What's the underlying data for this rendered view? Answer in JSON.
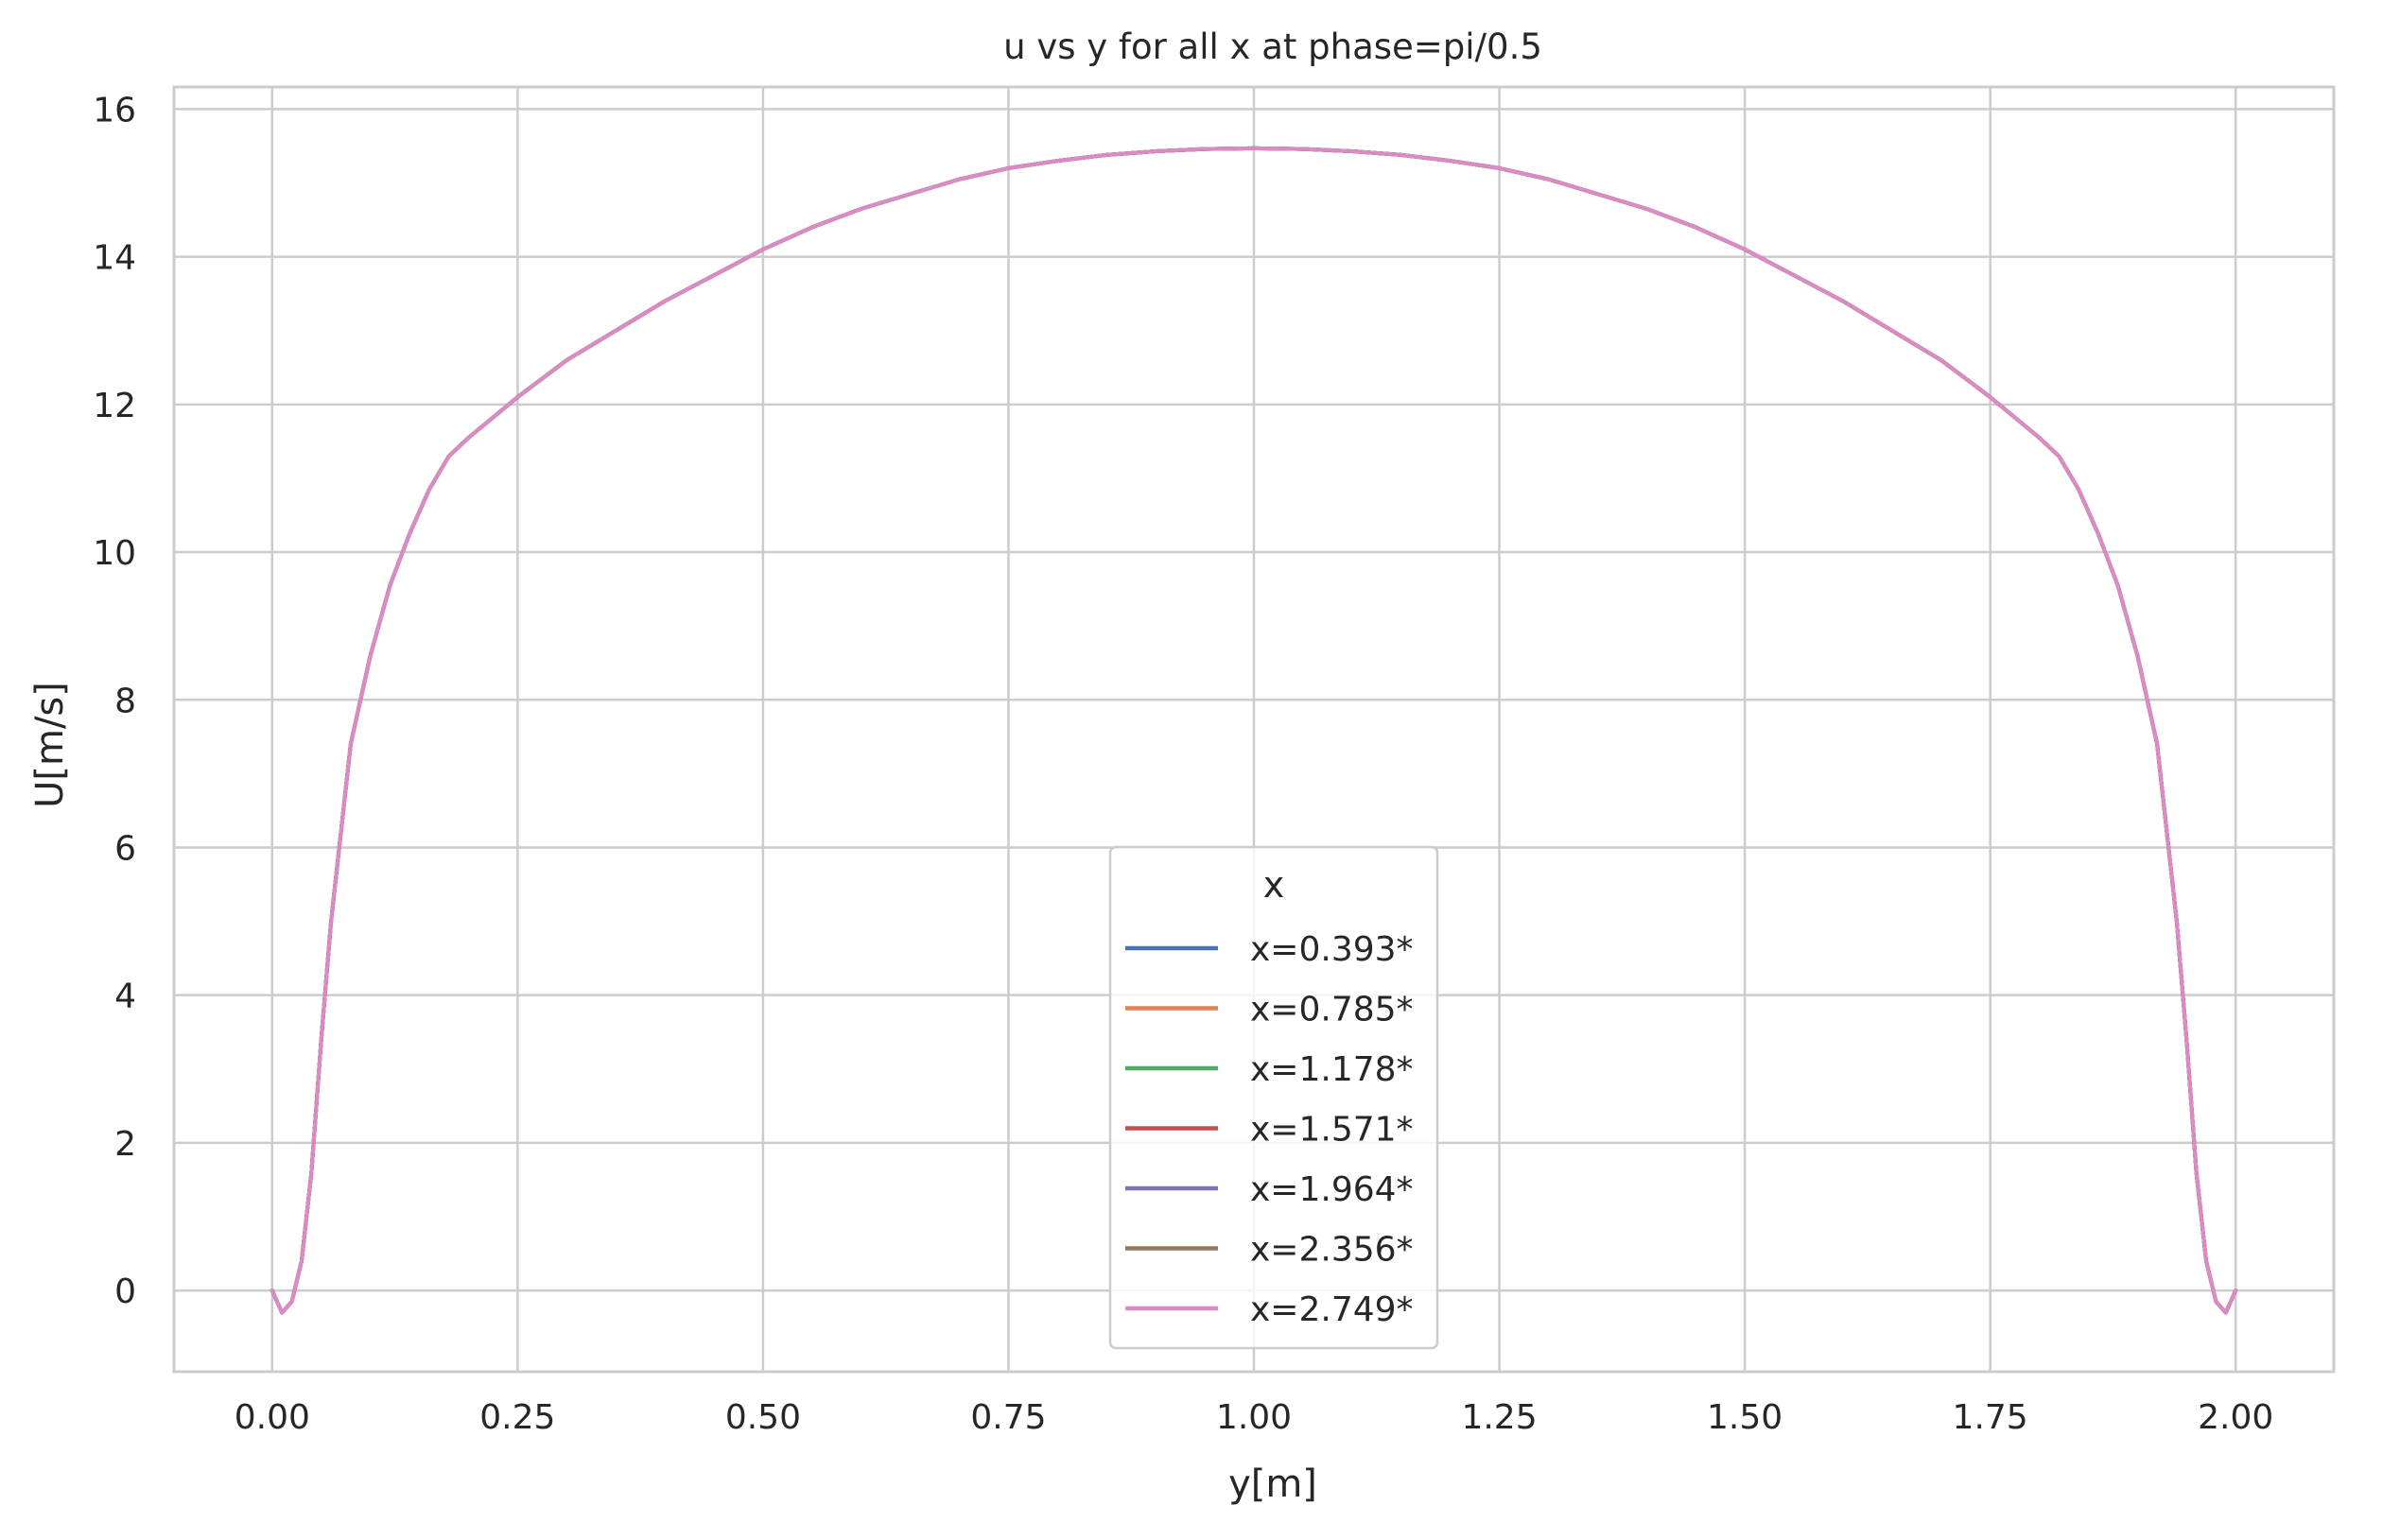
{
  "chart_data": {
    "type": "line",
    "title": "u vs y for all x at phase=pi/0.5",
    "xlabel": "y[m]",
    "ylabel": "U[m/s]",
    "xlim": [
      -0.1,
      2.1
    ],
    "ylim": [
      -1.1,
      16.3
    ],
    "xticks": [
      0.0,
      0.25,
      0.5,
      0.75,
      1.0,
      1.25,
      1.5,
      1.75,
      2.0
    ],
    "xtick_labels": [
      "0.00",
      "0.25",
      "0.50",
      "0.75",
      "1.00",
      "1.25",
      "1.50",
      "1.75",
      "2.00"
    ],
    "yticks": [
      0,
      2,
      4,
      6,
      8,
      10,
      12,
      14,
      16
    ],
    "ytick_labels": [
      "0",
      "2",
      "4",
      "6",
      "8",
      "10",
      "12",
      "14",
      "16"
    ],
    "grid": true,
    "legend": {
      "title": "x",
      "position": "lower center"
    },
    "x": [
      0.0,
      0.01,
      0.02,
      0.03,
      0.04,
      0.05,
      0.06,
      0.07,
      0.08,
      0.1,
      0.12,
      0.14,
      0.16,
      0.18,
      0.2,
      0.25,
      0.3,
      0.35,
      0.4,
      0.45,
      0.5,
      0.55,
      0.6,
      0.65,
      0.7,
      0.75,
      0.8,
      0.85,
      0.9,
      0.95,
      1.0,
      1.05,
      1.1,
      1.15,
      1.2,
      1.25,
      1.3,
      1.35,
      1.4,
      1.45,
      1.5,
      1.55,
      1.6,
      1.65,
      1.7,
      1.75,
      1.8,
      1.82,
      1.84,
      1.86,
      1.88,
      1.9,
      1.92,
      1.93,
      1.94,
      1.95,
      1.96,
      1.97,
      1.98,
      1.99,
      2.0
    ],
    "series": [
      {
        "name": "x=0.393*",
        "color": "#4c72b0",
        "values": [
          0.0,
          -0.3,
          -0.15,
          0.4,
          1.6,
          3.4,
          5.0,
          6.2,
          7.4,
          8.6,
          9.55,
          10.25,
          10.85,
          11.3,
          11.55,
          12.1,
          12.6,
          13.0,
          13.4,
          13.75,
          14.1,
          14.4,
          14.65,
          14.85,
          15.05,
          15.2,
          15.3,
          15.38,
          15.43,
          15.46,
          15.47,
          15.46,
          15.43,
          15.38,
          15.3,
          15.2,
          15.05,
          14.85,
          14.65,
          14.4,
          14.1,
          13.75,
          13.4,
          13.0,
          12.6,
          12.1,
          11.55,
          11.3,
          10.85,
          10.25,
          9.55,
          8.6,
          7.4,
          6.2,
          5.0,
          3.4,
          1.6,
          0.4,
          -0.15,
          -0.3,
          0.0
        ]
      },
      {
        "name": "x=0.785*",
        "color": "#dd8452",
        "values": [
          0.0,
          -0.3,
          -0.15,
          0.4,
          1.6,
          3.4,
          5.0,
          6.2,
          7.4,
          8.6,
          9.55,
          10.25,
          10.85,
          11.3,
          11.55,
          12.1,
          12.6,
          13.0,
          13.4,
          13.75,
          14.1,
          14.4,
          14.65,
          14.85,
          15.05,
          15.2,
          15.3,
          15.38,
          15.43,
          15.46,
          15.47,
          15.46,
          15.43,
          15.38,
          15.3,
          15.2,
          15.05,
          14.85,
          14.65,
          14.4,
          14.1,
          13.75,
          13.4,
          13.0,
          12.6,
          12.1,
          11.55,
          11.3,
          10.85,
          10.25,
          9.55,
          8.6,
          7.4,
          6.2,
          5.0,
          3.4,
          1.6,
          0.4,
          -0.15,
          -0.3,
          0.0
        ]
      },
      {
        "name": "x=1.178*",
        "color": "#55a868",
        "values": [
          0.0,
          -0.3,
          -0.15,
          0.4,
          1.6,
          3.4,
          5.0,
          6.2,
          7.4,
          8.6,
          9.55,
          10.25,
          10.85,
          11.3,
          11.55,
          12.1,
          12.6,
          13.0,
          13.4,
          13.75,
          14.1,
          14.4,
          14.65,
          14.85,
          15.05,
          15.2,
          15.3,
          15.38,
          15.43,
          15.46,
          15.47,
          15.46,
          15.43,
          15.38,
          15.3,
          15.2,
          15.05,
          14.85,
          14.65,
          14.4,
          14.1,
          13.75,
          13.4,
          13.0,
          12.6,
          12.1,
          11.55,
          11.3,
          10.85,
          10.25,
          9.55,
          8.6,
          7.4,
          6.2,
          5.0,
          3.4,
          1.6,
          0.4,
          -0.15,
          -0.3,
          0.0
        ]
      },
      {
        "name": "x=1.571*",
        "color": "#c44e52",
        "values": [
          0.0,
          -0.3,
          -0.15,
          0.4,
          1.6,
          3.4,
          5.0,
          6.2,
          7.4,
          8.6,
          9.55,
          10.25,
          10.85,
          11.3,
          11.55,
          12.1,
          12.6,
          13.0,
          13.4,
          13.75,
          14.1,
          14.4,
          14.65,
          14.85,
          15.05,
          15.2,
          15.3,
          15.38,
          15.43,
          15.46,
          15.47,
          15.46,
          15.43,
          15.38,
          15.3,
          15.2,
          15.05,
          14.85,
          14.65,
          14.4,
          14.1,
          13.75,
          13.4,
          13.0,
          12.6,
          12.1,
          11.55,
          11.3,
          10.85,
          10.25,
          9.55,
          8.6,
          7.4,
          6.2,
          5.0,
          3.4,
          1.6,
          0.4,
          -0.15,
          -0.3,
          0.0
        ]
      },
      {
        "name": "x=1.964*",
        "color": "#8172b3",
        "values": [
          0.0,
          -0.3,
          -0.15,
          0.4,
          1.6,
          3.4,
          5.0,
          6.2,
          7.4,
          8.6,
          9.55,
          10.25,
          10.85,
          11.3,
          11.55,
          12.1,
          12.6,
          13.0,
          13.4,
          13.75,
          14.1,
          14.4,
          14.65,
          14.85,
          15.05,
          15.2,
          15.3,
          15.38,
          15.43,
          15.46,
          15.47,
          15.46,
          15.43,
          15.38,
          15.3,
          15.2,
          15.05,
          14.85,
          14.65,
          14.4,
          14.1,
          13.75,
          13.4,
          13.0,
          12.6,
          12.1,
          11.55,
          11.3,
          10.85,
          10.25,
          9.55,
          8.6,
          7.4,
          6.2,
          5.0,
          3.4,
          1.6,
          0.4,
          -0.15,
          -0.3,
          0.0
        ]
      },
      {
        "name": "x=2.356*",
        "color": "#937860",
        "values": [
          0.0,
          -0.3,
          -0.15,
          0.4,
          1.6,
          3.4,
          5.0,
          6.2,
          7.4,
          8.6,
          9.55,
          10.25,
          10.85,
          11.3,
          11.55,
          12.1,
          12.6,
          13.0,
          13.4,
          13.75,
          14.1,
          14.4,
          14.65,
          14.85,
          15.05,
          15.2,
          15.3,
          15.38,
          15.43,
          15.46,
          15.47,
          15.46,
          15.43,
          15.38,
          15.3,
          15.2,
          15.05,
          14.85,
          14.65,
          14.4,
          14.1,
          13.75,
          13.4,
          13.0,
          12.6,
          12.1,
          11.55,
          11.3,
          10.85,
          10.25,
          9.55,
          8.6,
          7.4,
          6.2,
          5.0,
          3.4,
          1.6,
          0.4,
          -0.15,
          -0.3,
          0.0
        ]
      },
      {
        "name": "x=2.749*",
        "color": "#da8bc3",
        "values": [
          0.0,
          -0.3,
          -0.15,
          0.4,
          1.6,
          3.4,
          5.0,
          6.2,
          7.4,
          8.6,
          9.55,
          10.25,
          10.85,
          11.3,
          11.55,
          12.1,
          12.6,
          13.0,
          13.4,
          13.75,
          14.1,
          14.4,
          14.65,
          14.85,
          15.05,
          15.2,
          15.3,
          15.38,
          15.43,
          15.46,
          15.47,
          15.46,
          15.43,
          15.38,
          15.3,
          15.2,
          15.05,
          14.85,
          14.65,
          14.4,
          14.1,
          13.75,
          13.4,
          13.0,
          12.6,
          12.1,
          11.55,
          11.3,
          10.85,
          10.25,
          9.55,
          8.6,
          7.4,
          6.2,
          5.0,
          3.4,
          1.6,
          0.4,
          -0.15,
          -0.3,
          0.0
        ]
      }
    ],
    "colors": {
      "grid": "#cccccc",
      "spine": "#cccccc",
      "text": "#262626",
      "background": "#ffffff"
    }
  }
}
